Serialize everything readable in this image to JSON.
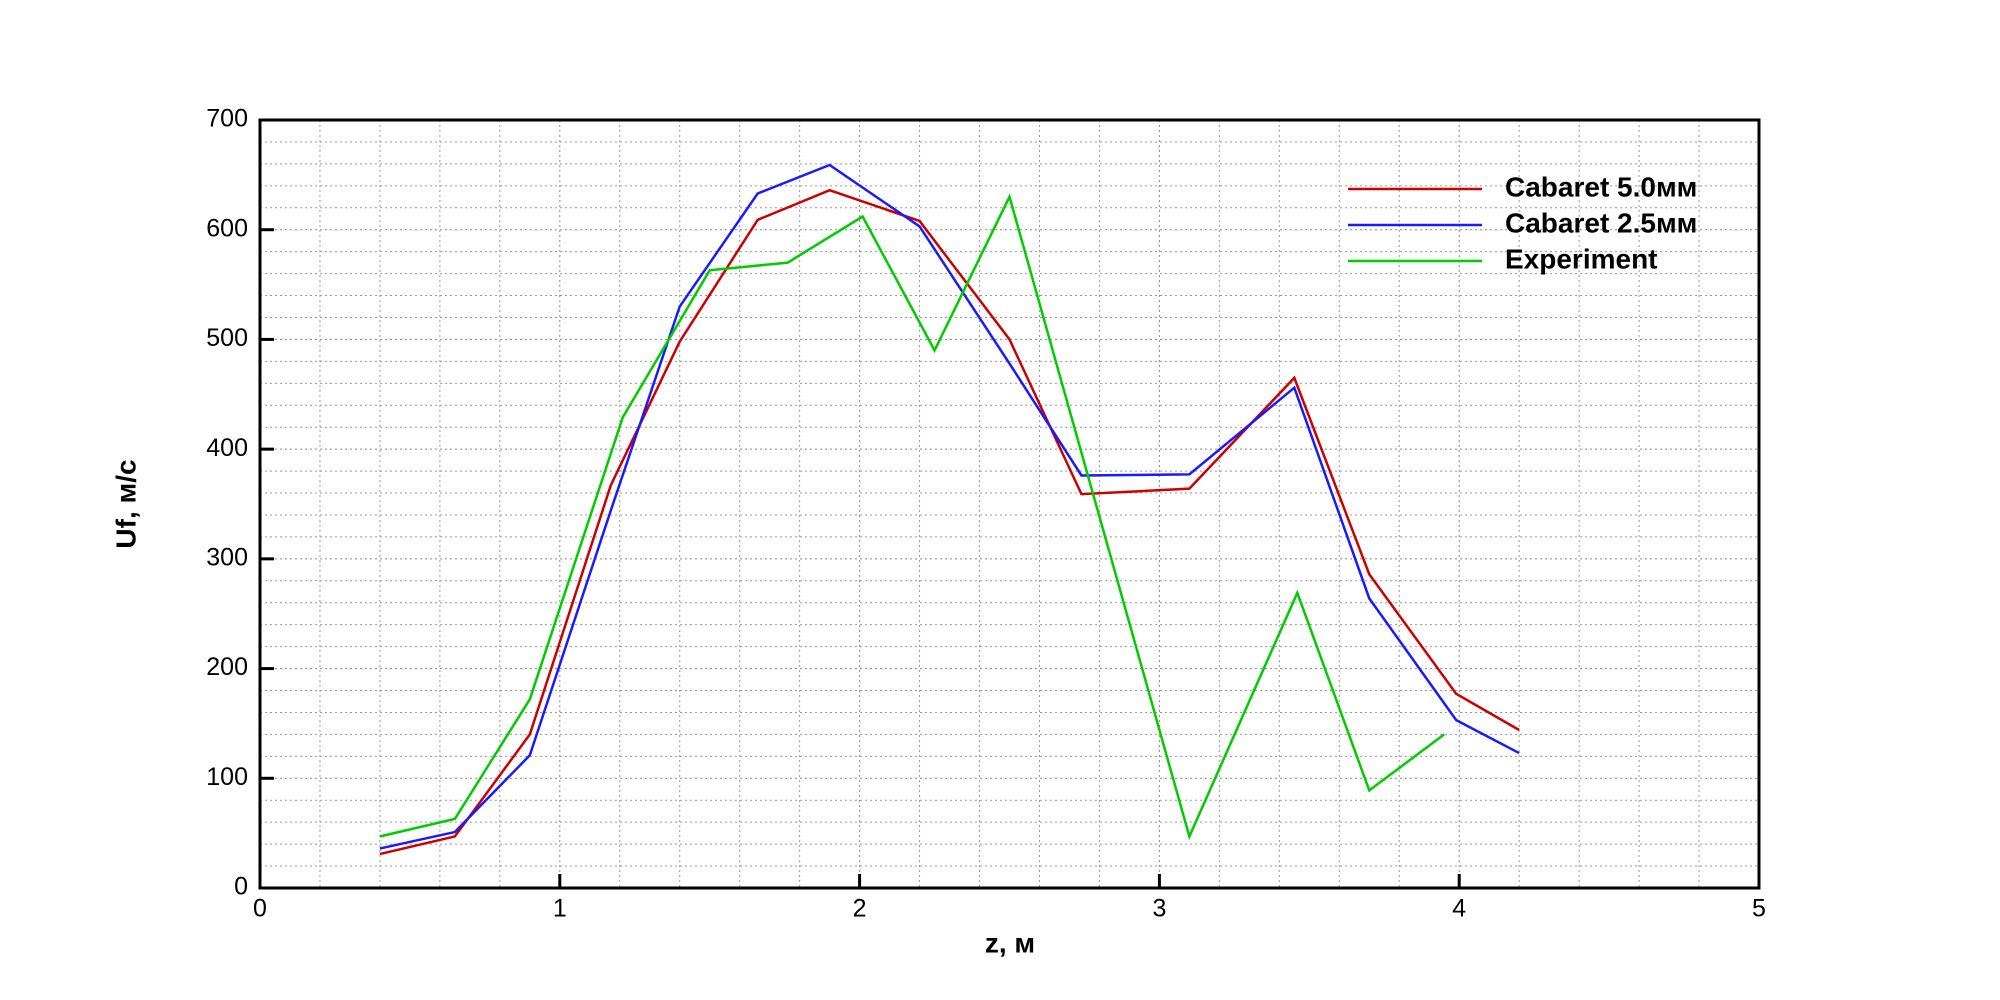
{
  "chart_data": {
    "type": "line",
    "x_label": "z, м",
    "y_label": "Uf, м/с",
    "xlim": [
      0,
      5
    ],
    "ylim": [
      0,
      700
    ],
    "xticks": [
      0,
      1,
      2,
      3,
      4,
      5
    ],
    "yticks": [
      0,
      100,
      200,
      300,
      400,
      500,
      600,
      700
    ],
    "grid": true,
    "legend_position": "upper-right",
    "series": [
      {
        "name": "Cabaret 5.0мм",
        "color": "#cc0000",
        "x": [
          0.4,
          0.65,
          0.9,
          1.17,
          1.4,
          1.66,
          1.9,
          2.2,
          2.5,
          2.74,
          3.1,
          3.45,
          3.7,
          3.99,
          4.2
        ],
        "values": [
          31,
          47,
          140,
          367,
          498,
          609,
          636,
          608,
          500,
          359,
          364,
          465,
          286,
          177,
          144
        ]
      },
      {
        "name": "Cabaret 2.5мм",
        "color": "#1a1aff",
        "x": [
          0.4,
          0.65,
          0.9,
          1.17,
          1.4,
          1.66,
          1.9,
          2.2,
          2.5,
          2.74,
          3.1,
          3.45,
          3.7,
          3.99,
          4.2
        ],
        "values": [
          36,
          51,
          121,
          344,
          530,
          633,
          659,
          603,
          478,
          376,
          377,
          456,
          264,
          153,
          123
        ]
      },
      {
        "name": "Experiment",
        "color": "#00cc00",
        "x": [
          0.4,
          0.65,
          0.9,
          1.21,
          1.5,
          1.76,
          2.01,
          2.25,
          2.5,
          3.1,
          3.46,
          3.7,
          3.95
        ],
        "values": [
          47,
          63,
          172,
          429,
          563,
          570,
          612,
          490,
          630,
          47,
          269,
          89,
          140
        ]
      }
    ]
  }
}
